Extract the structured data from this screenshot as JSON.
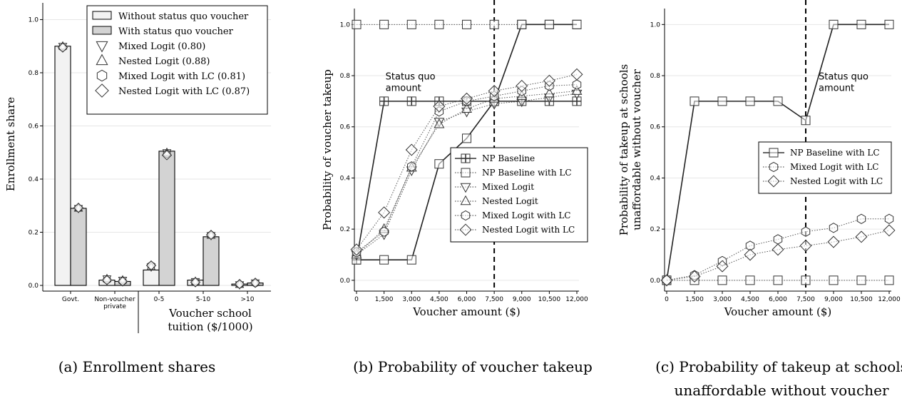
{
  "chart_data": [
    {
      "id": "a",
      "type": "bar",
      "caption": "(a) Enrollment shares",
      "ylabel": "Enrollment share",
      "xlabel": "",
      "ylim": [
        0,
        1.02
      ],
      "yticks": [
        "0.0",
        "0.2",
        "0.4",
        "0.6",
        "0.8",
        "1.0"
      ],
      "grid": true,
      "categories": [
        "Govt.",
        "Non-voucher private",
        "0-5",
        "5-10",
        ">10"
      ],
      "category_lines": [
        [
          "Govt."
        ],
        [
          "Non-voucher",
          "private"
        ],
        [
          "0-5"
        ],
        [
          "5-10"
        ],
        [
          ">10"
        ]
      ],
      "group_label_lines": [
        "Voucher school",
        "tuition ($/1000)"
      ],
      "series": [
        {
          "name": "Without status quo voucher",
          "color": "#f2f2f2",
          "values": [
            0.9,
            0.02,
            0.058,
            0.02,
            0.005
          ]
        },
        {
          "name": "With status quo voucher",
          "color": "#d3d3d3",
          "values": [
            0.29,
            0.015,
            0.505,
            0.183,
            0.009
          ]
        }
      ],
      "model_points": [
        {
          "name": "Mixed Logit (0.80)",
          "marker": "tri-down",
          "values": [
            [
              0.9,
              0.29
            ],
            [
              0.025,
              0.02
            ],
            [
              0.07,
              0.5
            ],
            [
              0.015,
              0.188
            ],
            [
              0.003,
              0.01
            ]
          ]
        },
        {
          "name": "Nested Logit (0.88)",
          "marker": "tri-up",
          "values": [
            [
              0.9,
              0.29
            ],
            [
              0.025,
              0.02
            ],
            [
              0.07,
              0.5
            ],
            [
              0.015,
              0.188
            ],
            [
              0.003,
              0.01
            ]
          ]
        },
        {
          "name": "Mixed Logit with LC (0.81)",
          "marker": "hexagon",
          "values": [
            [
              0.895,
              0.29
            ],
            [
              0.02,
              0.015
            ],
            [
              0.075,
              0.495
            ],
            [
              0.012,
              0.19
            ],
            [
              0.004,
              0.008
            ]
          ]
        },
        {
          "name": "Nested Logit with LC (0.87)",
          "marker": "diamond",
          "values": [
            [
              0.895,
              0.292
            ],
            [
              0.02,
              0.015
            ],
            [
              0.075,
              0.49
            ],
            [
              0.012,
              0.19
            ],
            [
              0.005,
              0.01
            ]
          ]
        }
      ],
      "legend_position": "top-right"
    },
    {
      "id": "b",
      "type": "line",
      "caption": "(b) Probability of voucher takeup",
      "xlabel": "Voucher amount ($)",
      "ylabel": "Probability of voucher takeup",
      "x": [
        0,
        1500,
        3000,
        4500,
        6000,
        7500,
        9000,
        10500,
        12000
      ],
      "xtick_labels": [
        "0",
        "1,500",
        "3,000",
        "4,500",
        "6,000",
        "7,500",
        "9,000",
        "10,500",
        "12,000"
      ],
      "ylim": [
        -0.02,
        1.04
      ],
      "yticks": [
        "0.0",
        "0.2",
        "0.4",
        "0.6",
        "0.8",
        "1.0"
      ],
      "vline_x": 7500,
      "annotation_lines": [
        "Status quo",
        "amount"
      ],
      "annotation_pos": [
        1500,
        0.84
      ],
      "series": [
        {
          "name": "NP Baseline",
          "marker": "plus-square",
          "style": "solid",
          "values": [
            0.08,
            0.7,
            0.7,
            0.7,
            0.7,
            0.7,
            0.7,
            0.7,
            0.7
          ]
        },
        {
          "name": "NP Baseline with LC",
          "marker": "square",
          "style": "dotted",
          "values": [
            1.0,
            1.0,
            1.0,
            1.0,
            1.0,
            1.0,
            1.0,
            1.0,
            1.0
          ]
        },
        {
          "name": "",
          "marker": "square",
          "style": "solid",
          "values": [
            0.08,
            0.08,
            0.08,
            0.455,
            0.555,
            0.7,
            1.0,
            1.0,
            1.0
          ]
        },
        {
          "name": "Mixed Logit",
          "marker": "tri-down",
          "style": "dotted",
          "values": [
            0.1,
            0.18,
            0.43,
            0.62,
            0.66,
            0.69,
            0.7,
            0.715,
            0.73
          ]
        },
        {
          "name": "Nested Logit",
          "marker": "tri-up",
          "style": "dotted",
          "values": [
            0.1,
            0.2,
            0.44,
            0.61,
            0.67,
            0.71,
            0.72,
            0.73,
            0.74
          ]
        },
        {
          "name": "Mixed Logit with LC",
          "marker": "hexagon",
          "style": "dotted",
          "values": [
            0.11,
            0.19,
            0.445,
            0.66,
            0.7,
            0.72,
            0.74,
            0.76,
            0.765
          ]
        },
        {
          "name": "Nested Logit with LC",
          "marker": "diamond",
          "style": "dotted",
          "values": [
            0.12,
            0.265,
            0.51,
            0.68,
            0.71,
            0.74,
            0.76,
            0.78,
            0.805
          ]
        }
      ],
      "legend_position": "lower-right"
    },
    {
      "id": "c",
      "type": "line",
      "caption_lines": [
        "(c) Probability of takeup at schools",
        "unaffordable without voucher"
      ],
      "xlabel": "Voucher amount ($)",
      "ylabel_lines": [
        "Probability of takeup at schools",
        "unaffordable without voucher"
      ],
      "x": [
        0,
        1500,
        3000,
        4500,
        6000,
        7500,
        9000,
        10500,
        12000
      ],
      "xtick_labels": [
        "0",
        "1,500",
        "3,000",
        "4,500",
        "6,000",
        "7,500",
        "9,000",
        "10,500",
        "12,000"
      ],
      "ylim": [
        -0.02,
        1.04
      ],
      "yticks": [
        "0.0",
        "0.2",
        "0.4",
        "0.6",
        "0.8",
        "1.0"
      ],
      "vline_x": 7500,
      "annotation_lines": [
        "Status quo",
        "amount"
      ],
      "annotation_pos": [
        7500,
        0.84
      ],
      "series": [
        {
          "name": "NP Baseline with LC",
          "marker": "square",
          "style": "solid",
          "values": [
            0.0,
            0.7,
            0.7,
            0.7,
            0.7,
            0.625,
            1.0,
            1.0,
            1.0
          ]
        },
        {
          "name": "",
          "marker": "square",
          "style": "dotted",
          "values": [
            0.0,
            0.0,
            0.0,
            0.0,
            0.0,
            0.0,
            0.0,
            0.0,
            0.0
          ]
        },
        {
          "name": "Mixed Logit with LC",
          "marker": "hexagon",
          "style": "dotted",
          "values": [
            0.0,
            0.02,
            0.075,
            0.135,
            0.16,
            0.19,
            0.205,
            0.24,
            0.24
          ]
        },
        {
          "name": "Nested Logit with LC",
          "marker": "diamond",
          "style": "dotted",
          "values": [
            0.0,
            0.015,
            0.055,
            0.1,
            0.12,
            0.135,
            0.15,
            0.17,
            0.195
          ]
        }
      ],
      "legend_position": "center-right"
    }
  ]
}
